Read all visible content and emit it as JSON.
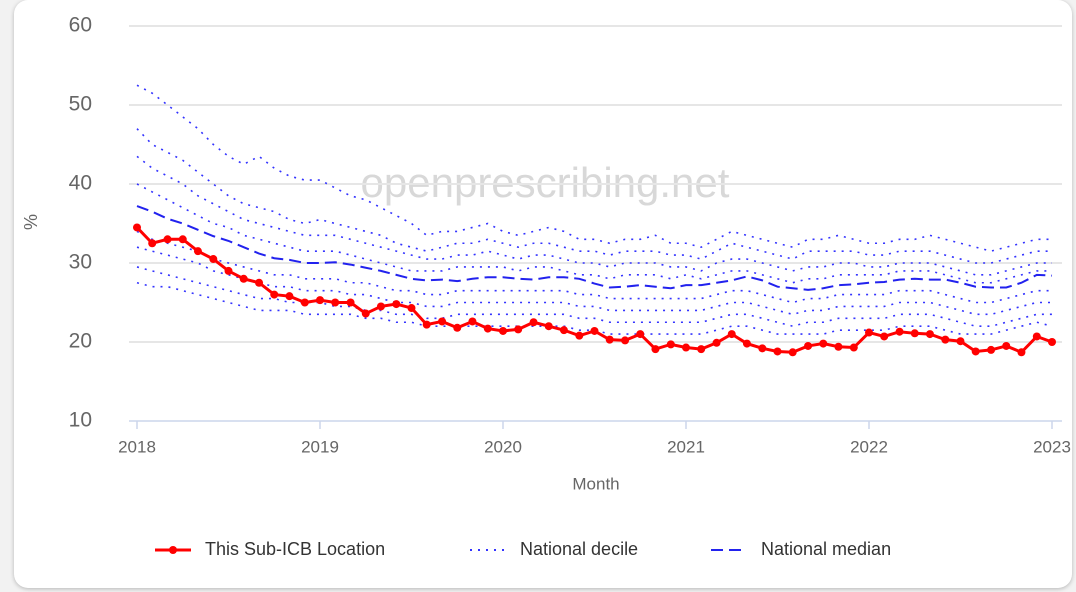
{
  "chart_data": {
    "type": "line",
    "watermark": "openprescribing.net",
    "xlabel": "Month",
    "ylabel": "%",
    "x": [
      2018,
      2018.083,
      2018.167,
      2018.25,
      2018.333,
      2018.417,
      2018.5,
      2018.583,
      2018.667,
      2018.75,
      2018.833,
      2018.917,
      2019,
      2019.083,
      2019.167,
      2019.25,
      2019.333,
      2019.417,
      2019.5,
      2019.583,
      2019.667,
      2019.75,
      2019.833,
      2019.917,
      2020,
      2020.083,
      2020.167,
      2020.25,
      2020.333,
      2020.417,
      2020.5,
      2020.583,
      2020.667,
      2020.75,
      2020.833,
      2020.917,
      2021,
      2021.083,
      2021.167,
      2021.25,
      2021.333,
      2021.417,
      2021.5,
      2021.583,
      2021.667,
      2021.75,
      2021.833,
      2021.917,
      2022,
      2022.083,
      2022.167,
      2022.25,
      2022.333,
      2022.417,
      2022.5,
      2022.583,
      2022.667,
      2022.75,
      2022.833,
      2022.917,
      2023
    ],
    "xlim": [
      2018,
      2023
    ],
    "xticks": [
      2018,
      2019,
      2020,
      2021,
      2022,
      2023
    ],
    "ylim": [
      10,
      60
    ],
    "yticks": [
      10,
      20,
      30,
      40,
      50,
      60
    ],
    "grid": true,
    "series": [
      {
        "name": "This Sub-ICB Location",
        "color": "#ff0000",
        "style": "solid",
        "markers": true,
        "values": [
          34.5,
          32.5,
          33,
          33,
          31.5,
          30.5,
          29,
          28,
          27.5,
          26,
          25.8,
          25,
          25.3,
          25,
          25,
          23.6,
          24.5,
          24.8,
          24.3,
          22.2,
          22.6,
          21.8,
          22.6,
          21.7,
          21.4,
          21.6,
          22.5,
          22,
          21.5,
          20.8,
          21.4,
          20.3,
          20.2,
          21,
          19.1,
          19.7,
          19.3,
          19.1,
          19.9,
          21,
          19.8,
          19.2,
          18.8,
          18.7,
          19.5,
          19.8,
          19.4,
          19.3,
          21.2,
          20.7,
          21.3,
          21.1,
          21,
          20.3,
          20.1,
          18.8,
          19,
          19.5,
          18.7,
          20.7,
          20
        ]
      },
      {
        "name": "National decile",
        "color": "#3333ff",
        "style": "dotted",
        "lines": [
          [
            52.5,
            51.5,
            50,
            48.5,
            47,
            45,
            43.5,
            42.5,
            43.5,
            42,
            41,
            40.5,
            40.5,
            39.5,
            38.5,
            38,
            37,
            36,
            35,
            33.5,
            34,
            34,
            34.5,
            35,
            34,
            33.5,
            34,
            34.5,
            34,
            33,
            33,
            32.5,
            33,
            33,
            33.5,
            32.5,
            32.5,
            32,
            33,
            34,
            33.5,
            33,
            32.5,
            32,
            33,
            33,
            33.5,
            33,
            32.5,
            32.5,
            33,
            33,
            33.5,
            33,
            32.5,
            32,
            31.5,
            32,
            32.5,
            33,
            33
          ],
          [
            47,
            45,
            44,
            43,
            41.5,
            40,
            38.5,
            37.5,
            37,
            36.5,
            35.5,
            35,
            35.5,
            35,
            34.5,
            34,
            33.5,
            32.5,
            32,
            31.5,
            32,
            32.5,
            32.5,
            33,
            32.5,
            32,
            32.5,
            32.5,
            32,
            31.5,
            31.5,
            31,
            31.5,
            31.5,
            31.5,
            31,
            31,
            30.5,
            31.5,
            32.5,
            32,
            31.5,
            31,
            30.5,
            31.5,
            31.5,
            31.5,
            31.5,
            31,
            31,
            31.5,
            31.5,
            31.5,
            31,
            30.5,
            30,
            30,
            30.5,
            31,
            31.5,
            31.5
          ],
          [
            43.5,
            42,
            41,
            40,
            38.5,
            37.5,
            36.5,
            35.5,
            35,
            34.5,
            34,
            33.5,
            33.5,
            33.5,
            33,
            32.5,
            32,
            31.5,
            31,
            30.5,
            30.5,
            31,
            31,
            31.5,
            31,
            30.5,
            31,
            31,
            30.5,
            30,
            30,
            29.5,
            30,
            30,
            30,
            29.5,
            29.5,
            29,
            30,
            30.5,
            30.5,
            30,
            29.5,
            29,
            29.5,
            29.5,
            30,
            30,
            29.5,
            29.5,
            30,
            30,
            30,
            29.5,
            29,
            28.5,
            28.5,
            29,
            29.5,
            30,
            30
          ],
          [
            40,
            39,
            38,
            37,
            36,
            35,
            34.5,
            33.5,
            33,
            32.5,
            32,
            31.5,
            31.5,
            31.5,
            31,
            30.5,
            30,
            29.5,
            29,
            29,
            29,
            29.5,
            29.5,
            29.5,
            29.5,
            29,
            29.5,
            29.5,
            29,
            28.5,
            28.5,
            28,
            28.5,
            28.5,
            28.5,
            28,
            28.5,
            28,
            28.5,
            29,
            29,
            28.5,
            28,
            27.5,
            28,
            28,
            28.5,
            28.5,
            28.5,
            28.5,
            29,
            29,
            29,
            28.5,
            28,
            27.5,
            27.5,
            28,
            28.5,
            29,
            29
          ],
          [
            34,
            33,
            32.5,
            32,
            31.5,
            30.5,
            30,
            29.5,
            29,
            28.5,
            28.5,
            28,
            28,
            28,
            27.5,
            27.5,
            27,
            26.5,
            26.5,
            26,
            26,
            26.5,
            26.5,
            26.5,
            26.5,
            26.5,
            26.5,
            26.5,
            26.5,
            26,
            26,
            25.5,
            25.5,
            25.5,
            25.5,
            25.5,
            25.5,
            25.5,
            26,
            26.5,
            26.5,
            26,
            25.5,
            25,
            25.5,
            25.5,
            26,
            26,
            26,
            26,
            26.5,
            26.5,
            26.5,
            26,
            25.5,
            25,
            25,
            25.5,
            26,
            26.5,
            26.5
          ],
          [
            32,
            31.5,
            31,
            30.5,
            30,
            29,
            28.5,
            28,
            27.5,
            27,
            27,
            26.5,
            26.5,
            26.5,
            26,
            26,
            25.5,
            25,
            25,
            24.5,
            24.5,
            25,
            25,
            25,
            25,
            25,
            25,
            25,
            25,
            24.5,
            24.5,
            24,
            24,
            24,
            24,
            24,
            24,
            24,
            24.5,
            25,
            25,
            24.5,
            24,
            23.5,
            24,
            24,
            24.5,
            24.5,
            24.5,
            24.5,
            25,
            25,
            25,
            24.5,
            24,
            23.5,
            23.5,
            24,
            24.5,
            25,
            25
          ],
          [
            29.5,
            29,
            28.5,
            28,
            27.5,
            27,
            26.5,
            26,
            25.5,
            25.5,
            25,
            25,
            25,
            24.5,
            24.5,
            24,
            24,
            23.5,
            23.5,
            23,
            23,
            23.5,
            23.5,
            23.5,
            23.5,
            23.5,
            23.5,
            23.5,
            23.5,
            23,
            23,
            22.5,
            22.5,
            22.5,
            22.5,
            22.5,
            22.5,
            22.5,
            23,
            23.5,
            23.5,
            23,
            22.5,
            22,
            22.5,
            22.5,
            23,
            23,
            23,
            23,
            23.5,
            23.5,
            23.5,
            23,
            22.5,
            22,
            22,
            22.5,
            23,
            23.5,
            23.5
          ],
          [
            27.5,
            27,
            27,
            26.5,
            26,
            25.5,
            25,
            24.5,
            24,
            24,
            24,
            23.5,
            23.5,
            23.5,
            23.5,
            23,
            23,
            22.5,
            22.5,
            22,
            22,
            22,
            22,
            22,
            22,
            22,
            22,
            22,
            22,
            21.5,
            21.5,
            21,
            21,
            21,
            21,
            21,
            21,
            21,
            21.5,
            22,
            22,
            21.5,
            21,
            21,
            21,
            21,
            21.5,
            21.5,
            21.5,
            21.5,
            22,
            22,
            22,
            21.5,
            21,
            21,
            21,
            21.5,
            22,
            22.5,
            22
          ]
        ]
      },
      {
        "name": "National median",
        "color": "#2222ee",
        "style": "dashed",
        "values": [
          37.2,
          36.5,
          35.6,
          35,
          34.2,
          33.4,
          32.8,
          32,
          31.2,
          30.6,
          30.4,
          30,
          30,
          30.1,
          29.8,
          29.4,
          29,
          28.5,
          28,
          27.8,
          27.9,
          27.7,
          28,
          28.2,
          28.2,
          28,
          27.9,
          28.2,
          28.2,
          28,
          27.4,
          26.9,
          27,
          27.2,
          27,
          26.8,
          27.2,
          27.2,
          27.5,
          27.8,
          28.3,
          27.8,
          27,
          26.8,
          26.6,
          26.8,
          27.2,
          27.3,
          27.5,
          27.6,
          27.9,
          28,
          27.9,
          27.9,
          27.5,
          27,
          26.9,
          26.9,
          27.5,
          28.5,
          28.4
        ]
      }
    ]
  }
}
